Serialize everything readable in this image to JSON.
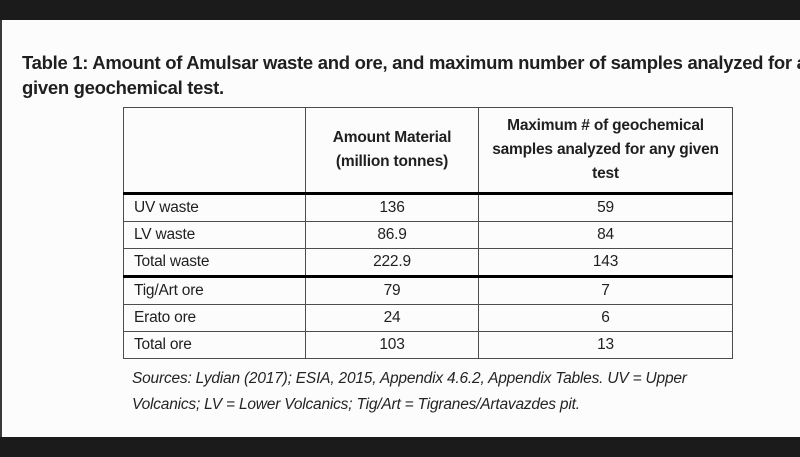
{
  "window": {
    "letterbox_color": "#1b1b1b",
    "page_background": "#fcfcfc",
    "text_color": "#1f1f1f"
  },
  "document": {
    "title_lines": [
      "Table 1: Amount of Amulsar waste and ore, and maximum number of samples analyzed for a",
      "given geochemical test."
    ],
    "table": {
      "header": {
        "col1": "",
        "col2": "Amount Material (million tonnes)",
        "col3": "Maximum # of geochemical samples analyzed for any given test"
      },
      "rows": [
        {
          "label": "UV waste",
          "amount": "136",
          "samples": "59"
        },
        {
          "label": "LV waste",
          "amount": "86.9",
          "samples": "84"
        },
        {
          "label": "Total waste",
          "amount": "222.9",
          "samples": "143"
        },
        {
          "label": "Tig/Art ore",
          "amount": "79",
          "samples": "7"
        },
        {
          "label": "Erato ore",
          "amount": "24",
          "samples": "6"
        },
        {
          "label": "Total ore",
          "amount": "103",
          "samples": "13"
        }
      ]
    },
    "source_lines": [
      "Sources: Lydian (2017); ESIA, 2015, Appendix 4.6.2, Appendix Tables. UV = Upper",
      "Volcanics; LV = Lower Volcanics; Tig/Art = Tigranes/Artavazdes pit."
    ]
  },
  "chart_data": {
    "type": "table",
    "title": "Table 1: Amount of Amulsar waste and ore, and maximum number of samples analyzed for a given geochemical test.",
    "columns": [
      "",
      "Amount Material (million tonnes)",
      "Maximum # of geochemical samples analyzed for any given test"
    ],
    "categories": [
      "UV waste",
      "LV waste",
      "Total waste",
      "Tig/Art ore",
      "Erato ore",
      "Total ore"
    ],
    "series": [
      {
        "name": "Amount Material (million tonnes)",
        "values": [
          136,
          86.9,
          222.9,
          79,
          24,
          103
        ]
      },
      {
        "name": "Maximum # of geochemical samples analyzed for any given test",
        "values": [
          59,
          84,
          143,
          7,
          6,
          13
        ]
      }
    ],
    "annotations": "Sources: Lydian (2017); ESIA, 2015, Appendix 4.6.2, Appendix Tables. UV = Upper Volcanics; LV = Lower Volcanics; Tig/Art = Tigranes/Artavazdes pit."
  }
}
